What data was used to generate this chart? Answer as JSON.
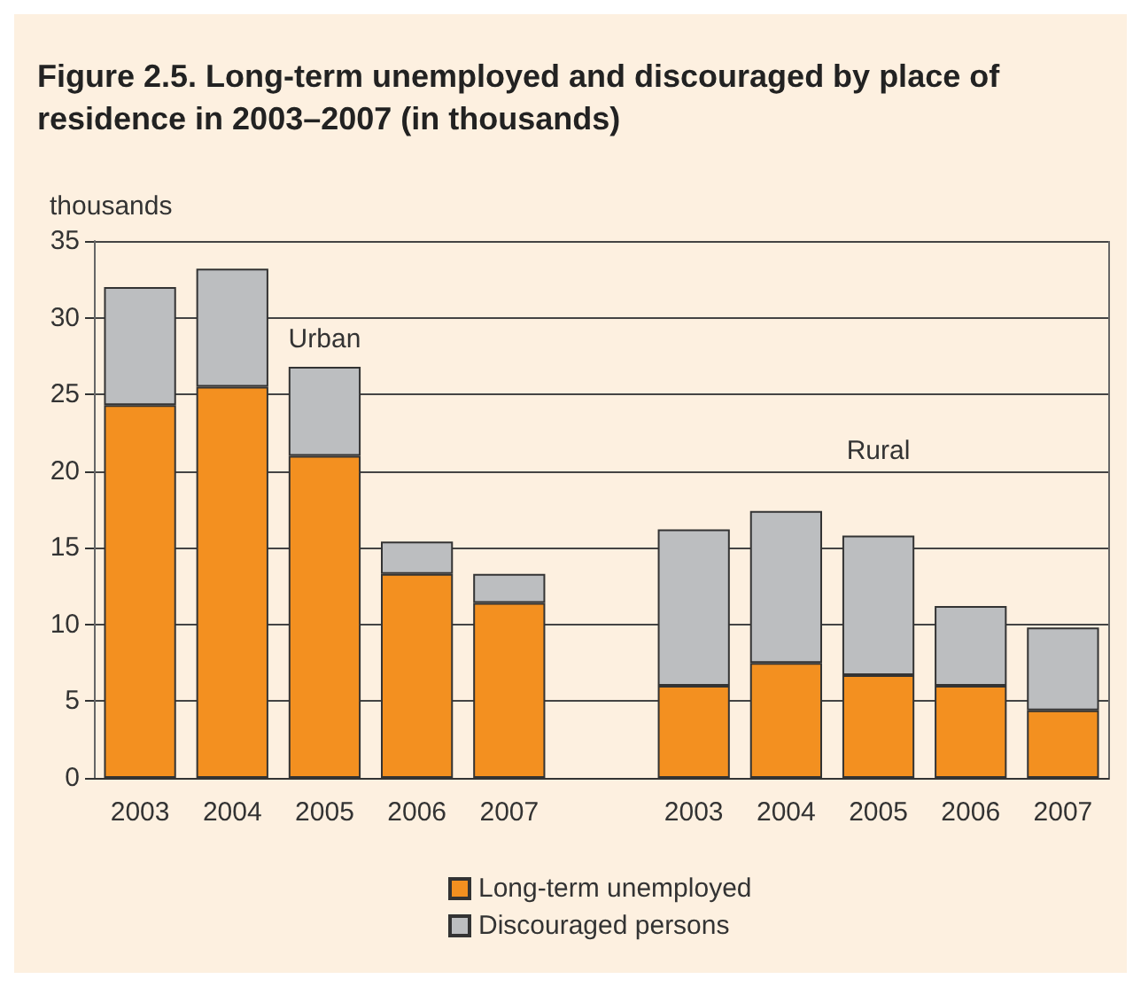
{
  "chart_data": {
    "type": "bar",
    "title": "Figure 2.5. Long-term unemployed and discouraged by place of residence in 2003–2007 (in thousands)",
    "ylabel": "thousands",
    "annotations": [
      "Urban",
      "Rural"
    ],
    "categories": [
      "2003",
      "2004",
      "2005",
      "2006",
      "2007",
      null,
      "2003",
      "2004",
      "2005",
      "2006",
      "2007"
    ],
    "series": [
      {
        "name": "Long-term unemployed",
        "color": "#f39020",
        "values": [
          24.3,
          25.5,
          21.0,
          13.3,
          11.4,
          null,
          6.0,
          7.5,
          6.7,
          6.0,
          4.4
        ]
      },
      {
        "name": "Discouraged persons",
        "color": "#bcbec0",
        "values": [
          7.7,
          7.7,
          5.8,
          2.1,
          1.9,
          null,
          10.2,
          9.9,
          9.1,
          5.2,
          5.4
        ]
      }
    ],
    "stacked": true,
    "ylim": [
      0,
      35
    ],
    "yticks": [
      0,
      5,
      10,
      15,
      20,
      25,
      30,
      35
    ],
    "grid": "y",
    "legend": "bottom"
  }
}
